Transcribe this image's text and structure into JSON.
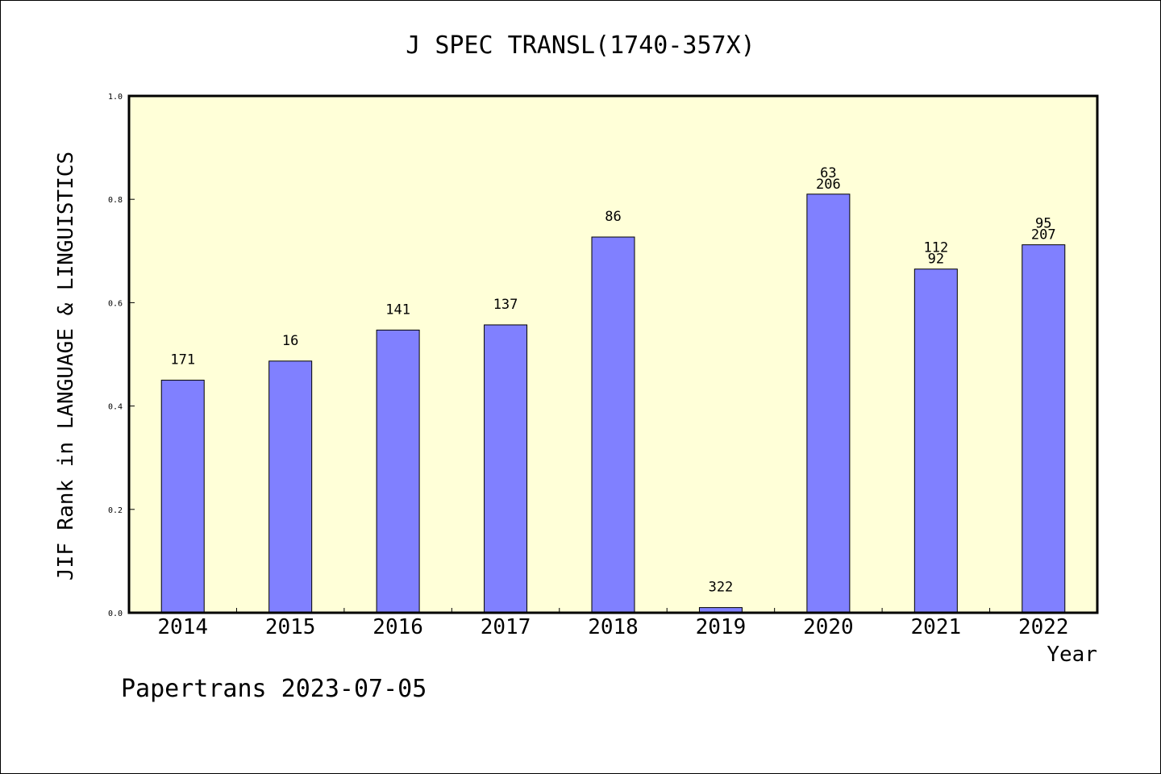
{
  "chart_data": {
    "type": "bar",
    "title": "J SPEC TRANSL(1740-357X)",
    "xlabel": "Year",
    "ylabel": "JIF Rank in LANGUAGE & LINGUISTICS",
    "ylim": [
      0,
      1.0
    ],
    "yticks": [
      "0.0",
      "0.2",
      "0.4",
      "0.6",
      "0.8",
      "1.0"
    ],
    "categories": [
      "2014",
      "2015",
      "2016",
      "2017",
      "2018",
      "2019",
      "2020",
      "2021",
      "2022"
    ],
    "values": [
      0.45,
      0.487,
      0.547,
      0.557,
      0.727,
      0.01,
      0.81,
      0.665,
      0.712
    ],
    "labels": [
      [
        "171"
      ],
      [
        "16"
      ],
      [
        "141"
      ],
      [
        "137"
      ],
      [
        "86"
      ],
      [
        "322"
      ],
      [
        "63",
        "206"
      ],
      [
        "112",
        "92"
      ],
      [
        "95",
        "207"
      ]
    ],
    "bar_color": "#8080ff",
    "plot_background": "#ffffd8",
    "grid": false,
    "legend": "none"
  },
  "footer": {
    "credit": "Papertrans 2023-07-05"
  }
}
